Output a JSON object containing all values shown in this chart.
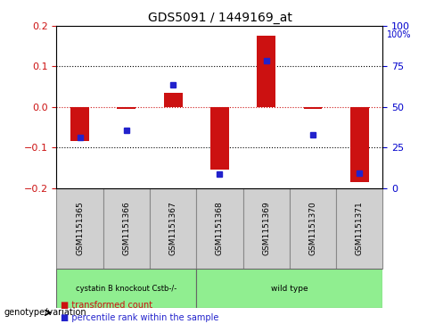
{
  "title": "GDS5091 / 1449169_at",
  "samples": [
    "GSM1151365",
    "GSM1151366",
    "GSM1151367",
    "GSM1151368",
    "GSM1151369",
    "GSM1151370",
    "GSM1151371"
  ],
  "red_bars": [
    -0.085,
    -0.005,
    0.035,
    -0.155,
    0.175,
    -0.005,
    -0.185
  ],
  "blue_dots": [
    -0.075,
    -0.058,
    0.055,
    -0.165,
    0.115,
    -0.068,
    -0.163
  ],
  "ylim_left": [
    -0.2,
    0.2
  ],
  "ylim_right": [
    0,
    100
  ],
  "yticks_left": [
    -0.2,
    -0.1,
    0.0,
    0.1,
    0.2
  ],
  "yticks_right": [
    0,
    25,
    50,
    75,
    100
  ],
  "groups": [
    {
      "label": "cystatin B knockout Cstb-/-",
      "samples": [
        0,
        1,
        2
      ],
      "color": "#90EE90"
    },
    {
      "label": "wild type",
      "samples": [
        3,
        4,
        5,
        6
      ],
      "color": "#90EE90"
    }
  ],
  "group_boundary": 3,
  "bar_color": "#CC1111",
  "dot_color": "#2222CC",
  "zero_line_color": "#CC1111",
  "grid_color": "#000000",
  "background_color": "#ffffff",
  "left_axis_color": "#CC1111",
  "right_axis_color": "#0000CC",
  "genotype_label": "genotype/variation",
  "legend_red": "transformed count",
  "legend_blue": "percentile rank within the sample",
  "bar_width": 0.4
}
